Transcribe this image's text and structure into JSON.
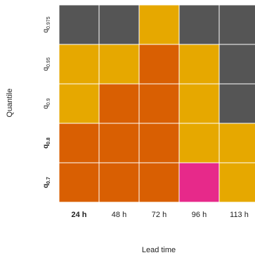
{
  "chart_data": {
    "type": "heatmap",
    "xlabel": "Lead time",
    "ylabel": "Quantile",
    "x_categories": [
      {
        "label": "24 h",
        "bold": true
      },
      {
        "label": "48 h",
        "bold": false
      },
      {
        "label": "72 h",
        "bold": false
      },
      {
        "label": "96 h",
        "bold": false
      },
      {
        "label": "113 h",
        "bold": false
      }
    ],
    "y_categories": [
      {
        "base": "q",
        "sub": "0.975",
        "bold": false
      },
      {
        "base": "q",
        "sub": "0.95",
        "bold": false
      },
      {
        "base": "q",
        "sub": "0.9",
        "bold": false
      },
      {
        "base": "q",
        "sub": "0.8",
        "bold": true
      },
      {
        "base": "q",
        "sub": "0.7",
        "bold": true
      }
    ],
    "palette": {
      "grey": "#555555",
      "yellow": "#E6A800",
      "orange": "#D95F02",
      "pink": "#E7298A"
    },
    "cells": [
      [
        "grey",
        "grey",
        "yellow",
        "grey",
        "grey"
      ],
      [
        "yellow",
        "yellow",
        "orange",
        "yellow",
        "grey"
      ],
      [
        "yellow",
        "orange",
        "orange",
        "yellow",
        "grey"
      ],
      [
        "orange",
        "orange",
        "orange",
        "yellow",
        "yellow"
      ],
      [
        "orange",
        "orange",
        "orange",
        "pink",
        "yellow"
      ]
    ],
    "grid": false
  }
}
